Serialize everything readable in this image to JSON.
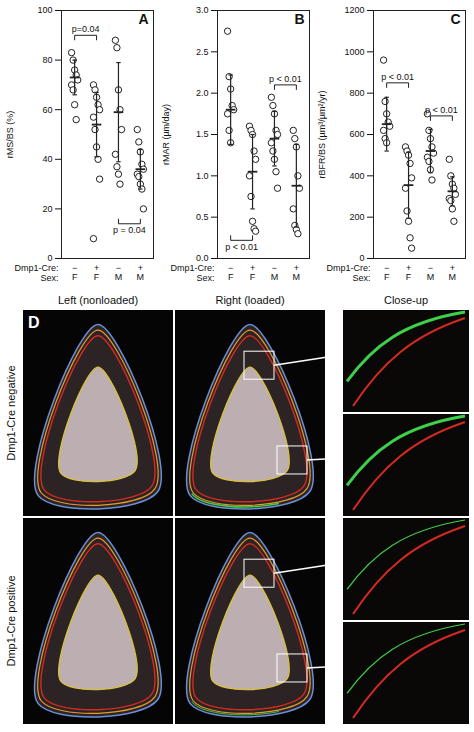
{
  "chart_data": [
    {
      "type": "scatter",
      "panel": "A",
      "y_label": "rMS/BS (%)",
      "marker": "circle",
      "ylim": [
        0,
        100
      ],
      "yticks": [
        0,
        20,
        40,
        60,
        80,
        100
      ],
      "x_rows": [
        {
          "label": "Dmp1-Cre:",
          "values": [
            "−",
            "+",
            "−",
            "+"
          ]
        },
        {
          "label": "Sex:",
          "values": [
            "F",
            "F",
            "M",
            "M"
          ]
        }
      ],
      "groups": [
        {
          "values": [
            83,
            80,
            76,
            74,
            72,
            70,
            68,
            62,
            56
          ],
          "mean": 73,
          "sd": 7
        },
        {
          "values": [
            70,
            68,
            65,
            62,
            60,
            57,
            52,
            45,
            40,
            32,
            8
          ],
          "mean": 54,
          "sd": 13
        },
        {
          "values": [
            88,
            85,
            68,
            60,
            52,
            42,
            37,
            34,
            30
          ],
          "mean": 59,
          "sd": 20
        },
        {
          "values": [
            52,
            47,
            43,
            38,
            36,
            34,
            33,
            30,
            28,
            20
          ],
          "mean": 36,
          "sd": 8
        }
      ],
      "annotations": [
        {
          "text": "p=0.04",
          "from": 0,
          "to": 1,
          "y": 90
        },
        {
          "text": "p = 0.04",
          "from": 2,
          "to": 3,
          "y": 14
        }
      ]
    },
    {
      "type": "scatter",
      "panel": "B",
      "y_label": "rMAR (µm/day)",
      "marker": "circle",
      "ylim": [
        0,
        3
      ],
      "yticks": [
        {
          "value": 0,
          "label": "0.0"
        },
        0.5,
        {
          "value": 1,
          "label": "1.0"
        },
        1.5,
        {
          "value": 2,
          "label": "2.0"
        },
        2.5,
        {
          "value": 3,
          "label": "3.0"
        }
      ],
      "x_rows": [
        {
          "label": "Dmp1-Cre:",
          "values": [
            "−",
            "+",
            "−",
            "+"
          ]
        },
        {
          "label": "Sex:",
          "values": [
            "F",
            "F",
            "M",
            "M"
          ]
        }
      ],
      "groups": [
        {
          "values": [
            2.75,
            2.2,
            2.05,
            1.85,
            1.8,
            1.75,
            1.55,
            1.4
          ],
          "mean": 1.8,
          "sd": 0.42
        },
        {
          "values": [
            1.6,
            1.55,
            1.5,
            1.3,
            1.2,
            1.0,
            0.75,
            0.45,
            0.36,
            0.33
          ],
          "mean": 1.05,
          "sd": 0.45
        },
        {
          "values": [
            1.95,
            1.85,
            1.75,
            1.55,
            1.5,
            1.4,
            1.3,
            1.2,
            1.05,
            0.85
          ],
          "mean": 1.45,
          "sd": 0.33
        },
        {
          "values": [
            1.55,
            1.45,
            1.35,
            1.0,
            0.85,
            0.6,
            0.4,
            0.35,
            0.3
          ],
          "mean": 0.88,
          "sd": 0.5
        }
      ],
      "annotations": [
        {
          "text": "p < 0.01",
          "from": 0,
          "to": 1,
          "y": 0.22
        },
        {
          "text": "p < 0.01",
          "from": 2,
          "to": 3,
          "y": 2.1
        }
      ]
    },
    {
      "type": "scatter",
      "panel": "C",
      "y_label": "rBFR/BS (µm³/µm²/yr)",
      "marker": "circle",
      "ylim": [
        0,
        1200
      ],
      "yticks": [
        0,
        200,
        400,
        600,
        800,
        1000,
        1200
      ],
      "x_rows": [
        {
          "label": "Dmp1-Cre:",
          "values": [
            "−",
            "+",
            "−",
            "+"
          ]
        },
        {
          "label": "Sex:",
          "values": [
            "F",
            "F",
            "M",
            "M"
          ]
        }
      ],
      "groups": [
        {
          "values": [
            960,
            760,
            700,
            660,
            640,
            620,
            580,
            560
          ],
          "mean": 650,
          "sd": 130
        },
        {
          "values": [
            540,
            520,
            500,
            460,
            390,
            340,
            230,
            180,
            100,
            50
          ],
          "mean": 355,
          "sd": 160
        },
        {
          "values": [
            700,
            620,
            580,
            540,
            510,
            490,
            470,
            430,
            380
          ],
          "mean": 520,
          "sd": 105
        },
        {
          "values": [
            480,
            400,
            360,
            340,
            310,
            290,
            280,
            240,
            180
          ],
          "mean": 325,
          "sd": 70
        }
      ],
      "annotations": [
        {
          "text": "p < 0.01",
          "from": 0,
          "to": 1,
          "y": 850
        },
        {
          "text": "p < 0.01",
          "from": 2,
          "to": 3,
          "y": 690
        }
      ]
    }
  ],
  "image_panel": {
    "panel": "D",
    "column_headers": [
      "Left (nonloaded)",
      "Right (loaded)",
      "Close-up"
    ],
    "row_labels": [
      "Dmp1-Cre negative",
      "Dmp1-Cre positive"
    ]
  }
}
